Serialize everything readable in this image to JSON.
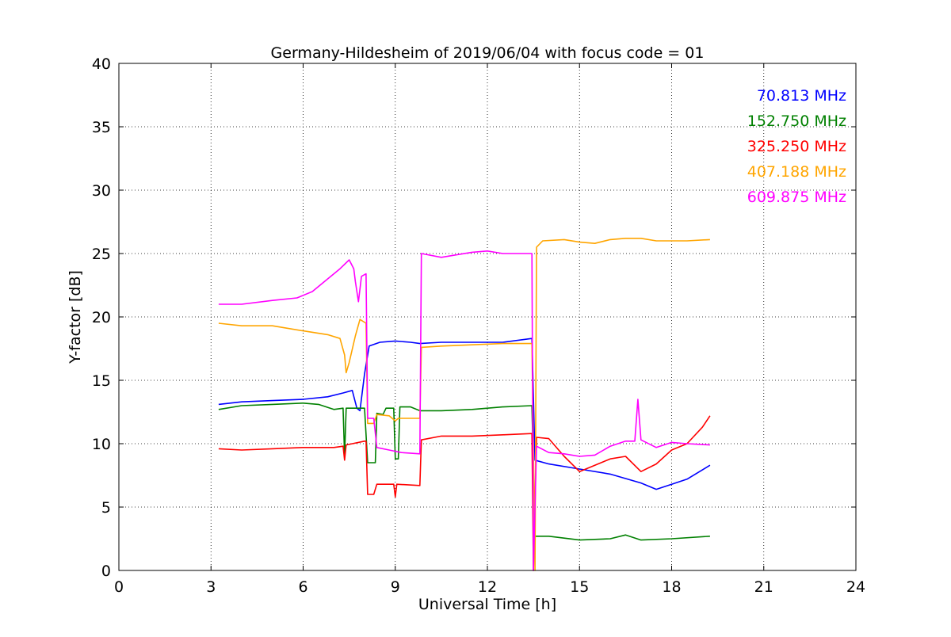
{
  "chart_data": {
    "type": "line",
    "title": "Germany-Hildesheim of 2019/06/04 with focus code = 01",
    "xlabel": "Universal Time [h]",
    "ylabel": "Y-factor [dB]",
    "xlim": [
      0,
      24
    ],
    "ylim": [
      0,
      40
    ],
    "xticks": [
      "0",
      "3",
      "6",
      "9",
      "12",
      "15",
      "18",
      "21",
      "24"
    ],
    "yticks": [
      "0",
      "5",
      "10",
      "15",
      "20",
      "25",
      "30",
      "35",
      "40"
    ],
    "grid": true,
    "legend_position": "top-right",
    "series": [
      {
        "name": "70.813 MHz",
        "color": "#0000ff",
        "points": [
          [
            3.25,
            13.1
          ],
          [
            4.0,
            13.3
          ],
          [
            5.0,
            13.4
          ],
          [
            6.0,
            13.5
          ],
          [
            6.8,
            13.7
          ],
          [
            7.3,
            14.0
          ],
          [
            7.6,
            14.2
          ],
          [
            7.75,
            12.8
          ],
          [
            7.85,
            12.6
          ],
          [
            8.0,
            15.5
          ],
          [
            8.15,
            17.7
          ],
          [
            8.5,
            18.0
          ],
          [
            9.0,
            18.1
          ],
          [
            9.5,
            18.0
          ],
          [
            9.8,
            17.9
          ],
          [
            10.5,
            18.0
          ],
          [
            11.5,
            18.0
          ],
          [
            12.5,
            18.0
          ],
          [
            13.45,
            18.3
          ],
          [
            13.55,
            8.7
          ],
          [
            14.0,
            8.4
          ],
          [
            15.0,
            8.0
          ],
          [
            16.0,
            7.6
          ],
          [
            17.0,
            6.9
          ],
          [
            17.5,
            6.4
          ],
          [
            18.0,
            6.8
          ],
          [
            18.5,
            7.2
          ],
          [
            19.25,
            8.3
          ]
        ]
      },
      {
        "name": "152.750 MHz",
        "color": "#008000",
        "points": [
          [
            3.25,
            12.7
          ],
          [
            4.0,
            13.0
          ],
          [
            5.0,
            13.1
          ],
          [
            6.0,
            13.2
          ],
          [
            6.5,
            13.1
          ],
          [
            7.0,
            12.7
          ],
          [
            7.3,
            12.8
          ],
          [
            7.35,
            9.0
          ],
          [
            7.4,
            12.8
          ],
          [
            8.0,
            12.8
          ],
          [
            8.1,
            8.5
          ],
          [
            8.35,
            8.5
          ],
          [
            8.4,
            12.4
          ],
          [
            8.6,
            12.3
          ],
          [
            8.7,
            12.8
          ],
          [
            8.95,
            12.8
          ],
          [
            9.0,
            8.8
          ],
          [
            9.1,
            8.8
          ],
          [
            9.15,
            12.9
          ],
          [
            9.5,
            12.9
          ],
          [
            9.8,
            12.6
          ],
          [
            10.5,
            12.6
          ],
          [
            11.5,
            12.7
          ],
          [
            12.5,
            12.9
          ],
          [
            13.45,
            13.0
          ],
          [
            13.55,
            2.7
          ],
          [
            14.0,
            2.7
          ],
          [
            15.0,
            2.4
          ],
          [
            16.0,
            2.5
          ],
          [
            16.5,
            2.8
          ],
          [
            17.0,
            2.4
          ],
          [
            18.0,
            2.5
          ],
          [
            19.25,
            2.7
          ]
        ]
      },
      {
        "name": "325.250 MHz",
        "color": "#ff0000",
        "points": [
          [
            3.25,
            9.6
          ],
          [
            4.0,
            9.5
          ],
          [
            5.0,
            9.6
          ],
          [
            6.0,
            9.7
          ],
          [
            7.0,
            9.7
          ],
          [
            7.3,
            9.8
          ],
          [
            7.35,
            8.7
          ],
          [
            7.4,
            9.9
          ],
          [
            8.0,
            10.2
          ],
          [
            8.05,
            10.2
          ],
          [
            8.1,
            6.0
          ],
          [
            8.3,
            6.0
          ],
          [
            8.4,
            6.8
          ],
          [
            8.95,
            6.8
          ],
          [
            9.0,
            5.8
          ],
          [
            9.05,
            6.8
          ],
          [
            9.8,
            6.7
          ],
          [
            9.85,
            10.3
          ],
          [
            10.5,
            10.6
          ],
          [
            11.5,
            10.6
          ],
          [
            12.5,
            10.7
          ],
          [
            13.45,
            10.8
          ],
          [
            13.5,
            0.0
          ],
          [
            13.6,
            10.5
          ],
          [
            14.0,
            10.4
          ],
          [
            14.5,
            9.0
          ],
          [
            15.0,
            7.8
          ],
          [
            15.5,
            8.3
          ],
          [
            16.0,
            8.8
          ],
          [
            16.5,
            9.0
          ],
          [
            17.0,
            7.8
          ],
          [
            17.5,
            8.4
          ],
          [
            18.0,
            9.5
          ],
          [
            18.5,
            10.0
          ],
          [
            19.0,
            11.3
          ],
          [
            19.25,
            12.2
          ]
        ]
      },
      {
        "name": "407.188 MHz",
        "color": "#ffa500",
        "points": [
          [
            3.25,
            19.5
          ],
          [
            4.0,
            19.3
          ],
          [
            5.0,
            19.3
          ],
          [
            6.0,
            18.9
          ],
          [
            6.8,
            18.6
          ],
          [
            7.2,
            18.3
          ],
          [
            7.35,
            17.0
          ],
          [
            7.4,
            15.6
          ],
          [
            7.5,
            16.4
          ],
          [
            7.7,
            18.5
          ],
          [
            7.85,
            19.8
          ],
          [
            8.05,
            19.5
          ],
          [
            8.1,
            11.6
          ],
          [
            8.3,
            11.6
          ],
          [
            8.4,
            12.3
          ],
          [
            8.8,
            12.2
          ],
          [
            9.0,
            11.8
          ],
          [
            9.1,
            12.0
          ],
          [
            9.8,
            12.0
          ],
          [
            9.85,
            17.6
          ],
          [
            10.5,
            17.7
          ],
          [
            11.5,
            17.8
          ],
          [
            12.5,
            17.9
          ],
          [
            13.45,
            17.9
          ],
          [
            13.55,
            0.0
          ],
          [
            13.6,
            25.5
          ],
          [
            13.8,
            26.0
          ],
          [
            14.5,
            26.1
          ],
          [
            15.0,
            25.9
          ],
          [
            15.5,
            25.8
          ],
          [
            16.0,
            26.1
          ],
          [
            16.5,
            26.2
          ],
          [
            17.0,
            26.2
          ],
          [
            17.5,
            26.0
          ],
          [
            18.0,
            26.0
          ],
          [
            18.5,
            26.0
          ],
          [
            19.25,
            26.1
          ]
        ]
      },
      {
        "name": "609.875 MHz",
        "color": "#ff00ff",
        "points": [
          [
            3.25,
            21.0
          ],
          [
            4.0,
            21.0
          ],
          [
            5.0,
            21.3
          ],
          [
            5.8,
            21.5
          ],
          [
            6.3,
            22.0
          ],
          [
            6.8,
            23.0
          ],
          [
            7.2,
            23.8
          ],
          [
            7.5,
            24.5
          ],
          [
            7.65,
            23.8
          ],
          [
            7.7,
            22.8
          ],
          [
            7.8,
            21.2
          ],
          [
            7.9,
            23.2
          ],
          [
            8.05,
            23.4
          ],
          [
            8.1,
            12.0
          ],
          [
            8.3,
            12.0
          ],
          [
            8.4,
            9.7
          ],
          [
            8.8,
            9.5
          ],
          [
            9.2,
            9.3
          ],
          [
            9.8,
            9.2
          ],
          [
            9.85,
            25.0
          ],
          [
            10.5,
            24.7
          ],
          [
            11.0,
            24.9
          ],
          [
            11.5,
            25.1
          ],
          [
            12.0,
            25.2
          ],
          [
            12.5,
            25.0
          ],
          [
            13.45,
            25.0
          ],
          [
            13.5,
            0.0
          ],
          [
            13.6,
            9.8
          ],
          [
            14.0,
            9.3
          ],
          [
            14.5,
            9.2
          ],
          [
            15.0,
            9.0
          ],
          [
            15.5,
            9.1
          ],
          [
            16.0,
            9.8
          ],
          [
            16.5,
            10.2
          ],
          [
            16.8,
            10.2
          ],
          [
            16.9,
            13.5
          ],
          [
            17.0,
            10.3
          ],
          [
            17.5,
            9.7
          ],
          [
            18.0,
            10.1
          ],
          [
            18.5,
            10.0
          ],
          [
            19.25,
            9.9
          ]
        ]
      }
    ]
  }
}
